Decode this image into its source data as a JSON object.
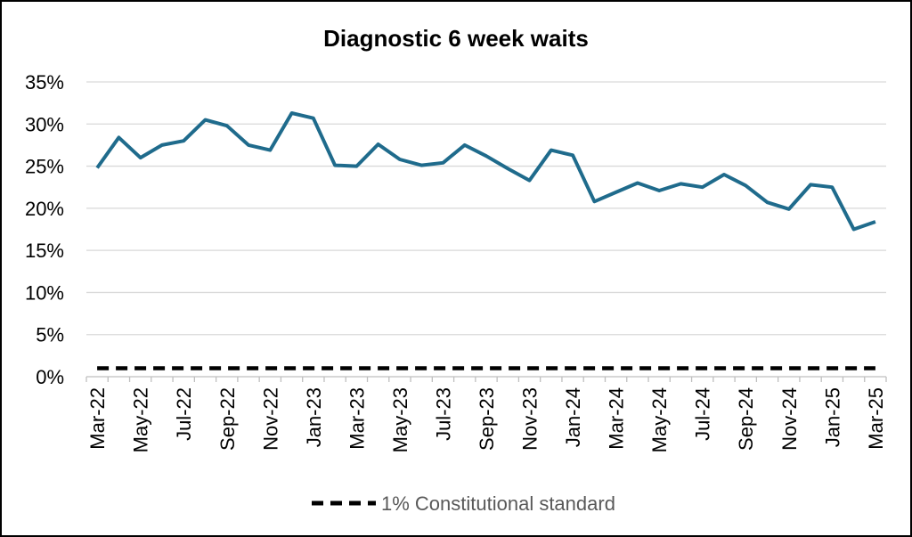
{
  "chart_data": {
    "type": "line",
    "title": "Diagnostic 6 week waits",
    "xlabel": "",
    "ylabel": "",
    "ylim": [
      0,
      35
    ],
    "yticks": [
      "0%",
      "5%",
      "10%",
      "15%",
      "20%",
      "25%",
      "30%",
      "35%"
    ],
    "grid": "horizontal",
    "legend_position": "bottom",
    "x": [
      "Mar-22",
      "Apr-22",
      "May-22",
      "Jun-22",
      "Jul-22",
      "Aug-22",
      "Sep-22",
      "Oct-22",
      "Nov-22",
      "Dec-22",
      "Jan-23",
      "Feb-23",
      "Mar-23",
      "Apr-23",
      "May-23",
      "Jun-23",
      "Jul-23",
      "Aug-23",
      "Sep-23",
      "Oct-23",
      "Nov-23",
      "Dec-23",
      "Jan-24",
      "Feb-24",
      "Mar-24",
      "Apr-24",
      "May-24",
      "Jun-24",
      "Jul-24",
      "Aug-24",
      "Sep-24",
      "Oct-24",
      "Nov-24",
      "Dec-24",
      "Jan-25",
      "Feb-25",
      "Mar-25"
    ],
    "x_tick_labels": [
      "Mar-22",
      "May-22",
      "Jul-22",
      "Sep-22",
      "Nov-22",
      "Jan-23",
      "Mar-23",
      "May-23",
      "Jul-23",
      "Sep-23",
      "Nov-23",
      "Jan-24",
      "Mar-24",
      "May-24",
      "Jul-24",
      "Sep-24",
      "Nov-24",
      "Jan-25",
      "Mar-25"
    ],
    "series": [
      {
        "values": [
          24.8,
          28.4,
          26.0,
          27.5,
          28.0,
          30.5,
          29.8,
          27.5,
          26.9,
          31.3,
          30.7,
          25.1,
          25.0,
          27.6,
          25.8,
          25.1,
          25.4,
          27.5,
          26.2,
          24.7,
          23.3,
          26.9,
          26.3,
          20.8,
          21.9,
          23.0,
          22.1,
          22.9,
          22.5,
          24.0,
          22.7,
          20.7,
          19.9,
          22.8,
          22.5,
          17.5,
          18.4
        ],
        "color": "#1f6b8c"
      },
      {
        "name": "1% Constitutional standard",
        "values": [
          1,
          1,
          1,
          1,
          1,
          1,
          1,
          1,
          1,
          1,
          1,
          1,
          1,
          1,
          1,
          1,
          1,
          1,
          1,
          1,
          1,
          1,
          1,
          1,
          1,
          1,
          1,
          1,
          1,
          1,
          1,
          1,
          1,
          1,
          1,
          1,
          1
        ],
        "color": "#000000",
        "style": "dashed"
      }
    ],
    "colors": {
      "gridline": "#d9d9d9",
      "axis": "#bfbfbf"
    }
  }
}
